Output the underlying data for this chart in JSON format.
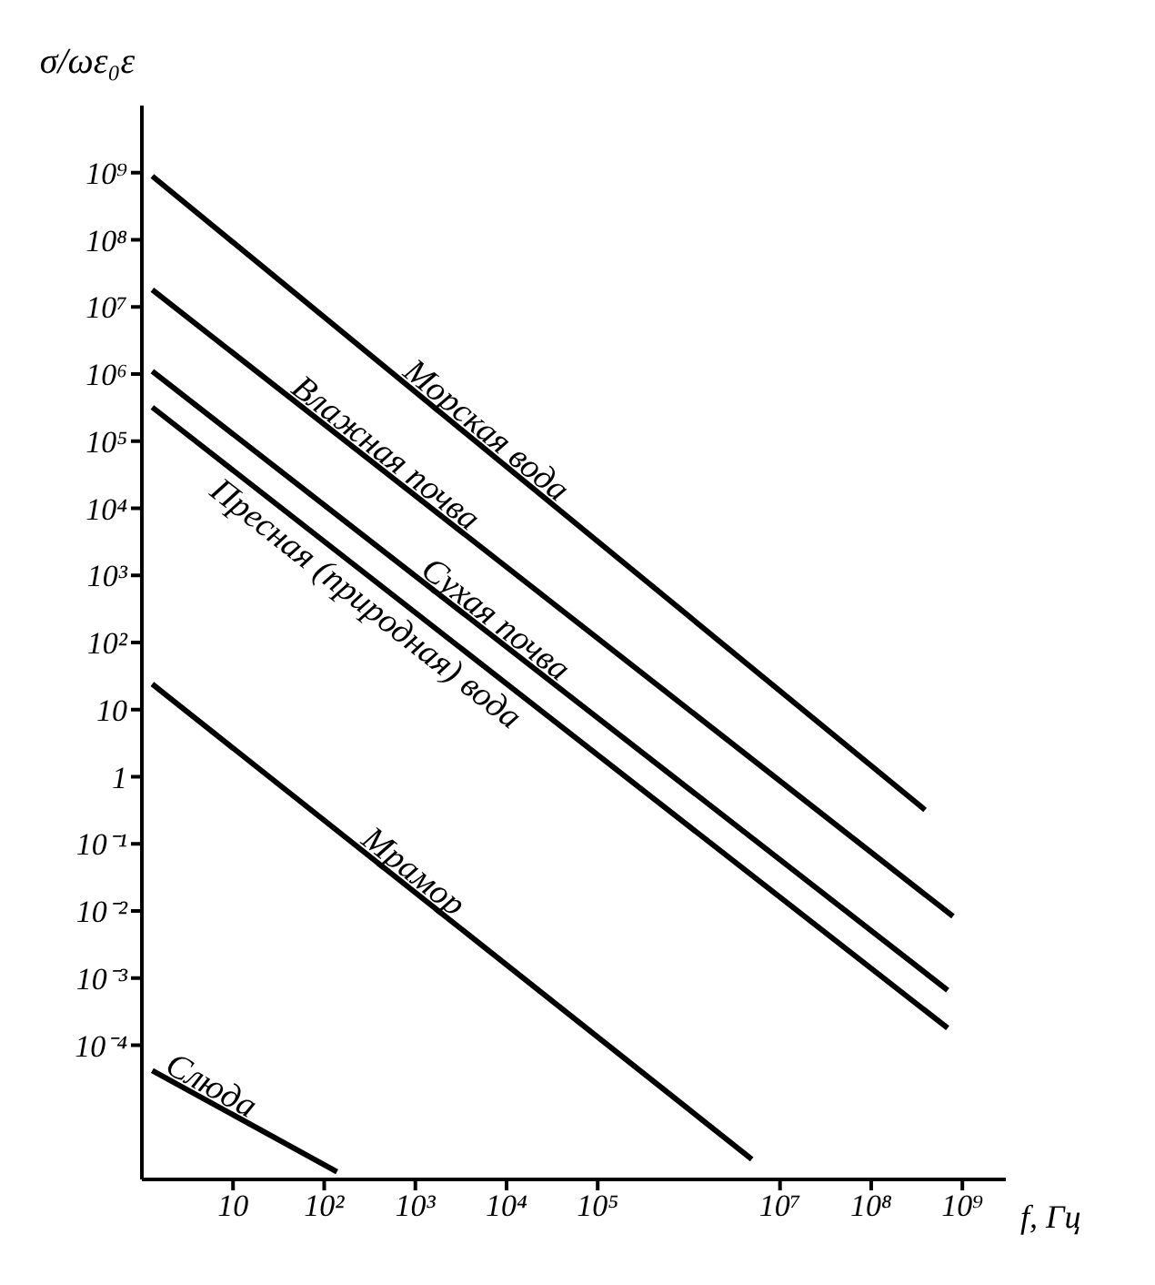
{
  "chart_data": {
    "type": "line",
    "ylabel": "σ/ωε₀ε",
    "xlabel": "f, Гц",
    "log": "xy",
    "marker": "none",
    "line_style": "solid",
    "xlim": [
      1,
      3000000000
    ],
    "ylim": [
      1e-06,
      10000000000
    ],
    "xticks": [
      {
        "value": 10,
        "label": "10"
      },
      {
        "value": 100,
        "label": "10²"
      },
      {
        "value": 1000,
        "label": "10³"
      },
      {
        "value": 10000,
        "label": "10⁴"
      },
      {
        "value": 100000,
        "label": "10⁵"
      },
      {
        "value": 10000000,
        "label": "10⁷"
      },
      {
        "value": 100000000,
        "label": "10⁸"
      },
      {
        "value": 1000000000,
        "label": "10⁹"
      }
    ],
    "yticks": [
      {
        "value": 0.0001,
        "label": "10⁻⁴"
      },
      {
        "value": 0.001,
        "label": "10⁻³"
      },
      {
        "value": 0.01,
        "label": "10⁻²"
      },
      {
        "value": 0.1,
        "label": "10⁻¹"
      },
      {
        "value": 1,
        "label": "1"
      },
      {
        "value": 10,
        "label": "10"
      },
      {
        "value": 100,
        "label": "10²"
      },
      {
        "value": 1000,
        "label": "10³"
      },
      {
        "value": 10000,
        "label": "10⁴"
      },
      {
        "value": 100000,
        "label": "10⁵"
      },
      {
        "value": 1000000,
        "label": "10⁶"
      },
      {
        "value": 10000000,
        "label": "10⁷"
      },
      {
        "value": 100000000,
        "label": "10⁸"
      },
      {
        "value": 1000000000,
        "label": "10⁹"
      }
    ],
    "series": [
      {
        "name": "Морская вода",
        "color": "#000000",
        "x": [
          1.3,
          390000000
        ],
        "values": [
          890000000,
          0.32
        ]
      },
      {
        "name": "Влажная почва",
        "color": "#000000",
        "x": [
          1.3,
          790000000
        ],
        "values": [
          18000000,
          0.0083
        ]
      },
      {
        "name": "Сухая почва",
        "color": "#000000",
        "x": [
          1.3,
          690000000
        ],
        "values": [
          1100000,
          0.00066
        ]
      },
      {
        "name": "Пресная (природная) вода",
        "color": "#000000",
        "x": [
          1.3,
          690000000
        ],
        "values": [
          320000,
          0.00018
        ]
      },
      {
        "name": "Мрамор",
        "color": "#000000",
        "x": [
          1.3,
          4900000
        ],
        "values": [
          24,
          2e-06
        ]
      },
      {
        "name": "Слюда",
        "color": "#000000",
        "x": [
          1.3,
          138
        ],
        "values": [
          4.2e-05,
          1.3e-06
        ]
      }
    ]
  }
}
